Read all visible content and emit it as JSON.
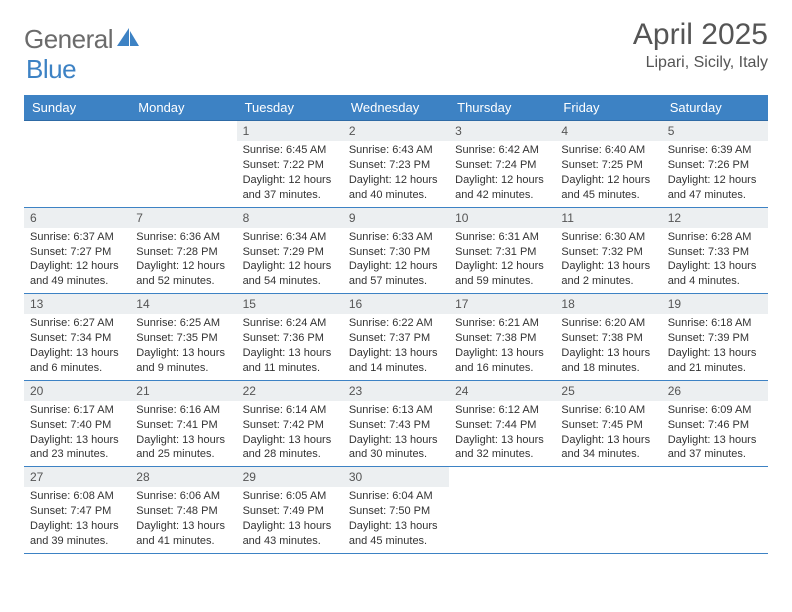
{
  "brand": {
    "general": "General",
    "blue": "Blue"
  },
  "header": {
    "title": "April 2025",
    "location": "Lipari, Sicily, Italy"
  },
  "colors": {
    "header_bar": "#3d82c4",
    "day_num_bg": "#eceff1",
    "text": "#333333",
    "title_text": "#555555",
    "week_divider": "#3d82c4",
    "background": "#ffffff"
  },
  "layout": {
    "columns": 7,
    "rows": 5,
    "lead_blanks": 2,
    "trail_blanks": 3
  },
  "weekdays": [
    "Sunday",
    "Monday",
    "Tuesday",
    "Wednesday",
    "Thursday",
    "Friday",
    "Saturday"
  ],
  "days": [
    {
      "n": "1",
      "sr": "6:45 AM",
      "ss": "7:22 PM",
      "dl": "12 hours and 37 minutes."
    },
    {
      "n": "2",
      "sr": "6:43 AM",
      "ss": "7:23 PM",
      "dl": "12 hours and 40 minutes."
    },
    {
      "n": "3",
      "sr": "6:42 AM",
      "ss": "7:24 PM",
      "dl": "12 hours and 42 minutes."
    },
    {
      "n": "4",
      "sr": "6:40 AM",
      "ss": "7:25 PM",
      "dl": "12 hours and 45 minutes."
    },
    {
      "n": "5",
      "sr": "6:39 AM",
      "ss": "7:26 PM",
      "dl": "12 hours and 47 minutes."
    },
    {
      "n": "6",
      "sr": "6:37 AM",
      "ss": "7:27 PM",
      "dl": "12 hours and 49 minutes."
    },
    {
      "n": "7",
      "sr": "6:36 AM",
      "ss": "7:28 PM",
      "dl": "12 hours and 52 minutes."
    },
    {
      "n": "8",
      "sr": "6:34 AM",
      "ss": "7:29 PM",
      "dl": "12 hours and 54 minutes."
    },
    {
      "n": "9",
      "sr": "6:33 AM",
      "ss": "7:30 PM",
      "dl": "12 hours and 57 minutes."
    },
    {
      "n": "10",
      "sr": "6:31 AM",
      "ss": "7:31 PM",
      "dl": "12 hours and 59 minutes."
    },
    {
      "n": "11",
      "sr": "6:30 AM",
      "ss": "7:32 PM",
      "dl": "13 hours and 2 minutes."
    },
    {
      "n": "12",
      "sr": "6:28 AM",
      "ss": "7:33 PM",
      "dl": "13 hours and 4 minutes."
    },
    {
      "n": "13",
      "sr": "6:27 AM",
      "ss": "7:34 PM",
      "dl": "13 hours and 6 minutes."
    },
    {
      "n": "14",
      "sr": "6:25 AM",
      "ss": "7:35 PM",
      "dl": "13 hours and 9 minutes."
    },
    {
      "n": "15",
      "sr": "6:24 AM",
      "ss": "7:36 PM",
      "dl": "13 hours and 11 minutes."
    },
    {
      "n": "16",
      "sr": "6:22 AM",
      "ss": "7:37 PM",
      "dl": "13 hours and 14 minutes."
    },
    {
      "n": "17",
      "sr": "6:21 AM",
      "ss": "7:38 PM",
      "dl": "13 hours and 16 minutes."
    },
    {
      "n": "18",
      "sr": "6:20 AM",
      "ss": "7:38 PM",
      "dl": "13 hours and 18 minutes."
    },
    {
      "n": "19",
      "sr": "6:18 AM",
      "ss": "7:39 PM",
      "dl": "13 hours and 21 minutes."
    },
    {
      "n": "20",
      "sr": "6:17 AM",
      "ss": "7:40 PM",
      "dl": "13 hours and 23 minutes."
    },
    {
      "n": "21",
      "sr": "6:16 AM",
      "ss": "7:41 PM",
      "dl": "13 hours and 25 minutes."
    },
    {
      "n": "22",
      "sr": "6:14 AM",
      "ss": "7:42 PM",
      "dl": "13 hours and 28 minutes."
    },
    {
      "n": "23",
      "sr": "6:13 AM",
      "ss": "7:43 PM",
      "dl": "13 hours and 30 minutes."
    },
    {
      "n": "24",
      "sr": "6:12 AM",
      "ss": "7:44 PM",
      "dl": "13 hours and 32 minutes."
    },
    {
      "n": "25",
      "sr": "6:10 AM",
      "ss": "7:45 PM",
      "dl": "13 hours and 34 minutes."
    },
    {
      "n": "26",
      "sr": "6:09 AM",
      "ss": "7:46 PM",
      "dl": "13 hours and 37 minutes."
    },
    {
      "n": "27",
      "sr": "6:08 AM",
      "ss": "7:47 PM",
      "dl": "13 hours and 39 minutes."
    },
    {
      "n": "28",
      "sr": "6:06 AM",
      "ss": "7:48 PM",
      "dl": "13 hours and 41 minutes."
    },
    {
      "n": "29",
      "sr": "6:05 AM",
      "ss": "7:49 PM",
      "dl": "13 hours and 43 minutes."
    },
    {
      "n": "30",
      "sr": "6:04 AM",
      "ss": "7:50 PM",
      "dl": "13 hours and 45 minutes."
    }
  ],
  "labels": {
    "sunrise": "Sunrise: ",
    "sunset": "Sunset: ",
    "daylight": "Daylight: "
  }
}
